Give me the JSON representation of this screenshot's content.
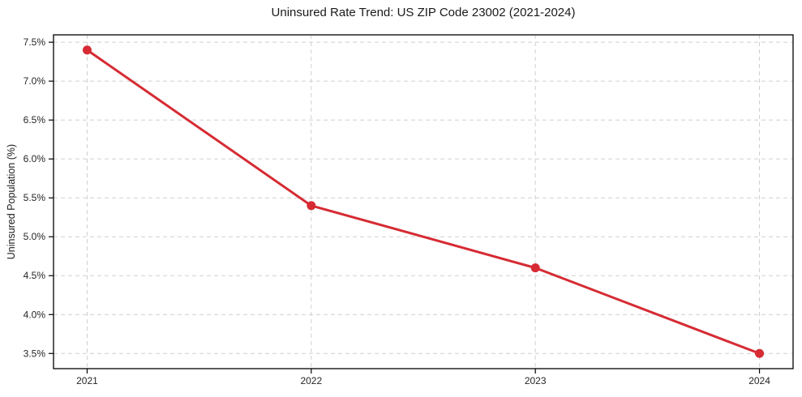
{
  "page": {
    "background": "#ffffff"
  },
  "chart_data": {
    "type": "line",
    "title": "Uninsured Rate Trend: US ZIP Code 23002 (2021-2024)",
    "xlabel": "",
    "ylabel": "Uninsured Population (%)",
    "x": [
      2021,
      2022,
      2023,
      2024
    ],
    "series": [
      {
        "name": "Uninsured rate",
        "values": [
          7.4,
          5.4,
          4.6,
          3.5
        ]
      }
    ],
    "xticks": [
      2021,
      2022,
      2023,
      2024
    ],
    "xtick_labels": [
      "2021",
      "2022",
      "2023",
      "2024"
    ],
    "yticks": [
      3.5,
      4.0,
      4.5,
      5.0,
      5.5,
      6.0,
      6.5,
      7.0,
      7.5
    ],
    "ytick_labels": [
      "3.5%",
      "4.0%",
      "4.5%",
      "5.0%",
      "5.5%",
      "6.0%",
      "6.5%",
      "7.0%",
      "7.5%"
    ],
    "xlim": [
      2020.85,
      2024.15
    ],
    "ylim": [
      3.305,
      7.595
    ],
    "grid": true,
    "legend": "none",
    "colors": {
      "line": "#d62b33",
      "marker": "#d62b33",
      "grid": "#cfcfcf",
      "axis": "#000000",
      "text": "#262626"
    }
  }
}
